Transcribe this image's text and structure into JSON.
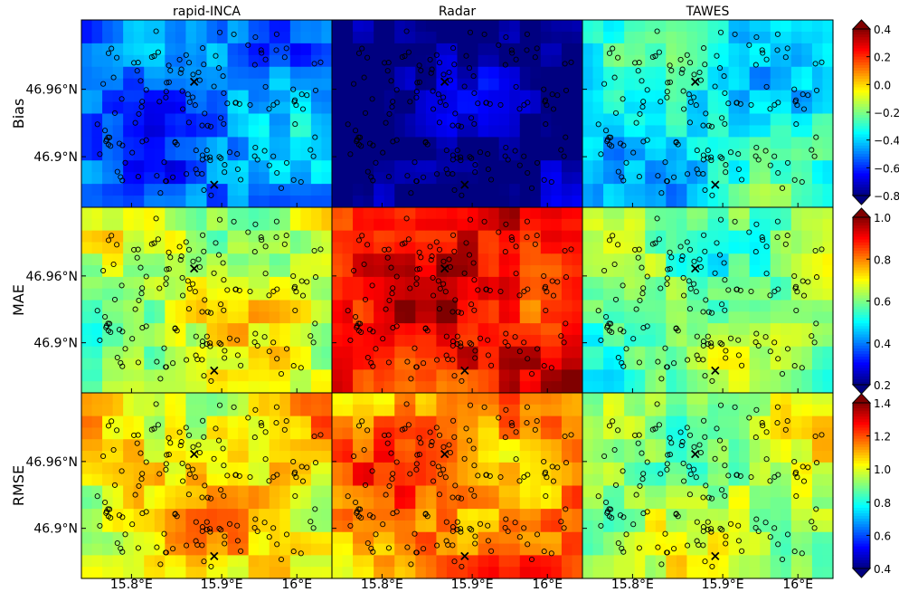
{
  "chart_data": {
    "type": "heatmap",
    "layout": "3x3 grid of spatial heatmaps with station markers",
    "columns": [
      "rapid-INCA",
      "Radar",
      "TAWES"
    ],
    "rows": [
      "Bias",
      "MAE",
      "RMSE"
    ],
    "x_ticks": [
      "15.8°E",
      "15.9°E",
      "16°E"
    ],
    "y_ticks": [
      "46.96°N",
      "46.9°N"
    ],
    "colorbars": [
      {
        "row": "Bias",
        "ticks": [
          "0.4",
          "0.2",
          "0.0",
          "−0.2",
          "−0.4",
          "−0.6",
          "−0.8"
        ],
        "range": [
          -0.8,
          0.4
        ]
      },
      {
        "row": "MAE",
        "ticks": [
          "1.0",
          "0.8",
          "0.6",
          "0.4",
          "0.2"
        ],
        "range": [
          0.2,
          1.0
        ]
      },
      {
        "row": "RMSE",
        "ticks": [
          "1.4",
          "1.2",
          "1.0",
          "0.8",
          "0.6",
          "0.4"
        ],
        "range": [
          0.4,
          1.4
        ]
      }
    ],
    "panel_levels": {
      "Bias": {
        "rapid-INCA": -0.5,
        "Radar": -0.8,
        "TAWES": -0.35
      },
      "MAE": {
        "rapid-INCA": 0.65,
        "Radar": 0.9,
        "TAWES": 0.6
      },
      "RMSE": {
        "rapid-INCA": 1.05,
        "Radar": 1.15,
        "TAWES": 0.95
      }
    },
    "colormap": "jet",
    "markers": [
      "station circles",
      "two x reference points"
    ]
  }
}
